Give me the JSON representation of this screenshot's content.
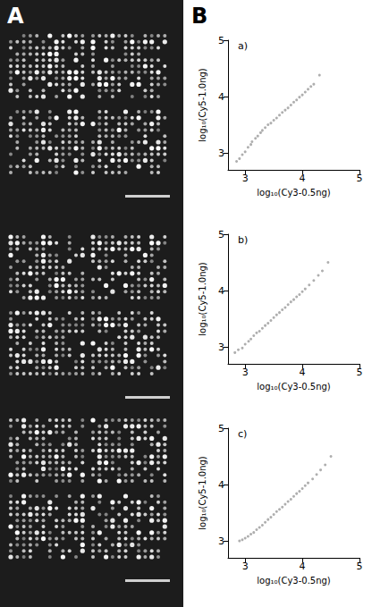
{
  "panel_labels": [
    "A",
    "B"
  ],
  "chart_data": [
    {
      "type": "scatter",
      "title": "a)",
      "x_label": "log₁₀(Cy3-0.5ng)",
      "y_label": "log₁₀(Cy5-1.0ng)",
      "xlim": [
        2.7,
        5
      ],
      "ylim": [
        2.7,
        5
      ],
      "xticks": [
        3,
        4,
        5
      ],
      "yticks": [
        3,
        4,
        5
      ],
      "grid": false,
      "color": "#9a9a9a",
      "marker": "circle",
      "x": [
        2.85,
        2.9,
        2.95,
        3.0,
        3.05,
        3.1,
        3.12,
        3.18,
        3.22,
        3.27,
        3.3,
        3.35,
        3.4,
        3.45,
        3.5,
        3.55,
        3.6,
        3.65,
        3.7,
        3.75,
        3.8,
        3.85,
        3.9,
        3.95,
        4.0,
        4.05,
        4.1,
        4.15,
        4.2,
        4.3
      ],
      "values": [
        2.85,
        2.9,
        2.97,
        3.02,
        3.1,
        3.15,
        3.2,
        3.26,
        3.3,
        3.36,
        3.4,
        3.45,
        3.5,
        3.53,
        3.58,
        3.62,
        3.67,
        3.72,
        3.76,
        3.8,
        3.85,
        3.9,
        3.94,
        3.99,
        4.03,
        4.08,
        4.13,
        4.18,
        4.22,
        4.38
      ]
    },
    {
      "type": "scatter",
      "title": "b)",
      "x_label": "log₁₀(Cy3-0.5ng)",
      "y_label": "log₁₀(Cy5-1.0ng)",
      "xlim": [
        2.7,
        5
      ],
      "ylim": [
        2.7,
        5
      ],
      "xticks": [
        3,
        4,
        5
      ],
      "yticks": [
        3,
        4,
        5
      ],
      "grid": false,
      "color": "#9a9a9a",
      "marker": "circle",
      "x": [
        2.82,
        2.88,
        2.95,
        3.0,
        3.06,
        3.1,
        3.15,
        3.2,
        3.25,
        3.3,
        3.35,
        3.4,
        3.45,
        3.5,
        3.55,
        3.6,
        3.65,
        3.7,
        3.75,
        3.8,
        3.85,
        3.9,
        3.95,
        4.0,
        4.05,
        4.12,
        4.2,
        4.28,
        4.35,
        4.45
      ],
      "values": [
        2.9,
        2.95,
        2.98,
        3.05,
        3.1,
        3.14,
        3.2,
        3.25,
        3.28,
        3.33,
        3.38,
        3.42,
        3.47,
        3.52,
        3.57,
        3.61,
        3.66,
        3.7,
        3.75,
        3.8,
        3.84,
        3.89,
        3.93,
        3.98,
        4.03,
        4.1,
        4.18,
        4.27,
        4.35,
        4.5
      ]
    },
    {
      "type": "scatter",
      "title": "c)",
      "x_label": "log₁₀(Cy3-0.5ng)",
      "y_label": "log₁₀(Cy5-1.0ng)",
      "xlim": [
        2.7,
        5
      ],
      "ylim": [
        2.7,
        5
      ],
      "xticks": [
        3,
        4,
        5
      ],
      "yticks": [
        3,
        4,
        5
      ],
      "grid": false,
      "color": "#9a9a9a",
      "marker": "circle",
      "x": [
        2.9,
        2.95,
        3.0,
        3.05,
        3.1,
        3.15,
        3.2,
        3.25,
        3.3,
        3.35,
        3.4,
        3.45,
        3.5,
        3.55,
        3.6,
        3.65,
        3.7,
        3.75,
        3.8,
        3.85,
        3.9,
        3.95,
        4.0,
        4.05,
        4.1,
        4.18,
        4.25,
        4.32,
        4.4,
        4.5
      ],
      "values": [
        3.0,
        3.02,
        3.05,
        3.08,
        3.12,
        3.15,
        3.2,
        3.24,
        3.28,
        3.33,
        3.38,
        3.42,
        3.47,
        3.52,
        3.56,
        3.6,
        3.65,
        3.7,
        3.74,
        3.79,
        3.84,
        3.88,
        3.93,
        3.98,
        4.03,
        4.1,
        4.18,
        4.26,
        4.35,
        4.5
      ]
    }
  ]
}
